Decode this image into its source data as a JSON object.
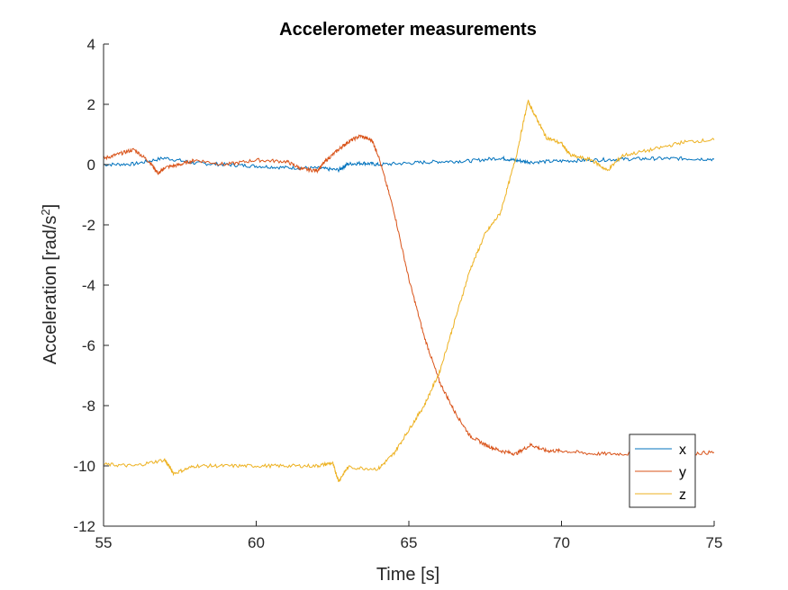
{
  "chart_data": {
    "type": "line",
    "title": "Accelerometer measurements",
    "xlabel": "Time [s]",
    "ylabel": "Acceleration [rad/s",
    "ylabel_sup": "2",
    "ylabel_end": "]",
    "xlim": [
      55,
      75
    ],
    "ylim": [
      -12,
      4
    ],
    "xticks": [
      "55",
      "60",
      "65",
      "70",
      "75"
    ],
    "yticks": [
      "-12",
      "-10",
      "-8",
      "-6",
      "-4",
      "-2",
      "0",
      "2",
      "4"
    ],
    "grid": false,
    "legend_position": "bottom-right",
    "series": [
      {
        "name": "x",
        "color": "#0072BD",
        "points": [
          [
            55,
            0.0
          ],
          [
            56,
            0.02
          ],
          [
            57,
            0.22
          ],
          [
            58,
            0.05
          ],
          [
            59,
            0.0
          ],
          [
            60,
            -0.05
          ],
          [
            61,
            -0.1
          ],
          [
            62,
            -0.12
          ],
          [
            62.7,
            -0.18
          ],
          [
            63,
            0.02
          ],
          [
            63.5,
            0.05
          ],
          [
            64,
            0.0
          ],
          [
            65,
            0.05
          ],
          [
            66,
            0.1
          ],
          [
            67,
            0.12
          ],
          [
            68,
            0.22
          ],
          [
            68.5,
            0.14
          ],
          [
            69,
            0.08
          ],
          [
            70,
            0.12
          ],
          [
            71,
            0.15
          ],
          [
            72,
            0.18
          ],
          [
            73,
            0.2
          ],
          [
            74,
            0.2
          ],
          [
            75,
            0.18
          ]
        ]
      },
      {
        "name": "y",
        "color": "#D95319",
        "points": [
          [
            55,
            0.2
          ],
          [
            55.5,
            0.35
          ],
          [
            56,
            0.5
          ],
          [
            56.5,
            0.1
          ],
          [
            56.8,
            -0.3
          ],
          [
            57,
            -0.1
          ],
          [
            57.5,
            0.0
          ],
          [
            58,
            0.15
          ],
          [
            59,
            0.0
          ],
          [
            60,
            0.15
          ],
          [
            61,
            0.1
          ],
          [
            61.5,
            -0.15
          ],
          [
            62,
            -0.2
          ],
          [
            62.3,
            0.15
          ],
          [
            62.7,
            0.5
          ],
          [
            63,
            0.75
          ],
          [
            63.4,
            0.95
          ],
          [
            63.8,
            0.8
          ],
          [
            64,
            0.3
          ],
          [
            64.5,
            -1.5
          ],
          [
            65,
            -3.8
          ],
          [
            65.5,
            -5.7
          ],
          [
            66,
            -7.2
          ],
          [
            66.5,
            -8.2
          ],
          [
            67,
            -9.0
          ],
          [
            67.5,
            -9.3
          ],
          [
            68,
            -9.5
          ],
          [
            68.5,
            -9.6
          ],
          [
            69,
            -9.3
          ],
          [
            69.5,
            -9.5
          ],
          [
            70,
            -9.5
          ],
          [
            71,
            -9.6
          ],
          [
            72,
            -9.6
          ],
          [
            73,
            -9.6
          ],
          [
            74,
            -9.6
          ],
          [
            75,
            -9.55
          ]
        ]
      },
      {
        "name": "z",
        "color": "#EDB120",
        "points": [
          [
            55,
            -9.95
          ],
          [
            56,
            -10.0
          ],
          [
            57,
            -9.8
          ],
          [
            57.3,
            -10.25
          ],
          [
            58,
            -10.0
          ],
          [
            59,
            -10.0
          ],
          [
            60,
            -10.0
          ],
          [
            61,
            -10.0
          ],
          [
            62,
            -10.0
          ],
          [
            62.5,
            -9.9
          ],
          [
            62.7,
            -10.5
          ],
          [
            63,
            -10.05
          ],
          [
            64,
            -10.1
          ],
          [
            64.5,
            -9.6
          ],
          [
            65,
            -8.8
          ],
          [
            65.5,
            -8.0
          ],
          [
            66,
            -6.9
          ],
          [
            66.5,
            -5.2
          ],
          [
            67,
            -3.5
          ],
          [
            67.5,
            -2.3
          ],
          [
            68,
            -1.6
          ],
          [
            68.5,
            0.2
          ],
          [
            68.9,
            2.1
          ],
          [
            69.2,
            1.5
          ],
          [
            69.5,
            0.9
          ],
          [
            70,
            0.7
          ],
          [
            70.3,
            0.3
          ],
          [
            71,
            0.15
          ],
          [
            71.5,
            -0.2
          ],
          [
            72,
            0.3
          ],
          [
            73,
            0.5
          ],
          [
            74,
            0.75
          ],
          [
            75,
            0.82
          ]
        ]
      }
    ]
  }
}
